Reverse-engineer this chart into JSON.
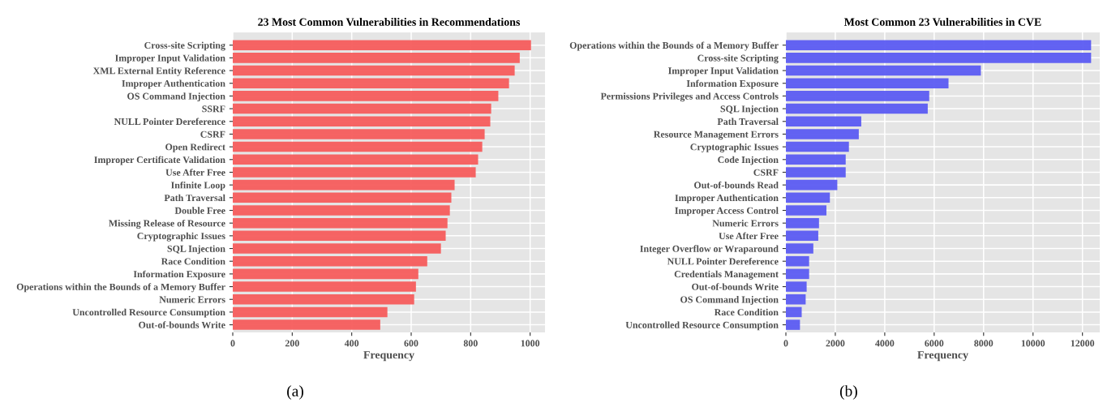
{
  "chart_data": [
    {
      "type": "bar",
      "orientation": "horizontal",
      "title": "23 Most Common Vulnerabilities in Recommendations",
      "xlabel": "Frequency",
      "annotations": [
        "(a)"
      ],
      "categories": [
        "Cross-site Scripting",
        "Improper Input Validation",
        "XML External Entity Reference",
        "Improper Authentication",
        "OS Command Injection",
        "SSRF",
        "NULL Pointer Dereference",
        "CSRF",
        "Open Redirect",
        "Improper Certificate Validation",
        "Use After Free",
        "Infinite Loop",
        "Path Traversal",
        "Double Free",
        "Missing Release of Resource",
        "Cryptographic Issues",
        "SQL Injection",
        "Race Condition",
        "Information Exposure",
        "Operations within the Bounds of a Memory Buffer",
        "Numeric Errors",
        "Uncontrolled Resource Consumption",
        "Out-of-bounds Write"
      ],
      "values": [
        1003,
        965,
        948,
        929,
        893,
        869,
        866,
        847,
        839,
        825,
        817,
        746,
        735,
        730,
        722,
        716,
        700,
        654,
        624,
        616,
        610,
        520,
        496
      ],
      "color": "#f65c5c",
      "xlim": [
        0,
        1050
      ],
      "xticks": [
        0,
        200,
        400,
        600,
        800,
        1000
      ],
      "grid": true
    },
    {
      "type": "bar",
      "orientation": "horizontal",
      "title": "Most Common 23 Vulnerabilities in CVE",
      "xlabel": "Frequency",
      "annotations": [
        "(b)"
      ],
      "categories": [
        "Operations within the Bounds of a Memory Buffer",
        "Cross-site Scripting",
        "Improper Input Validation",
        "Information Exposure",
        "Permissions Privileges and Access Controls",
        "SQL Injection",
        "Path Traversal",
        "Resource Management Errors",
        "Cryptographic Issues",
        "Code Injection",
        "CSRF",
        "Out-of-bounds Read",
        "Improper Authentication",
        "Improper Access Control",
        "Numeric Errors",
        "Use After Free",
        "Integer Overflow or Wraparound",
        "NULL Pointer Dereference",
        "Credentials Management",
        "Out-of-bounds Write",
        "OS Command Injection",
        "Race Condition",
        "Uncontrolled Resource Consumption"
      ],
      "values": [
        12350,
        12350,
        7890,
        6580,
        5800,
        5740,
        3050,
        2950,
        2550,
        2420,
        2420,
        2080,
        1780,
        1640,
        1340,
        1310,
        1110,
        940,
        940,
        840,
        800,
        640,
        570
      ],
      "color": "#5b5bf2",
      "xlim": [
        0,
        12700
      ],
      "xticks": [
        0,
        2000,
        4000,
        6000,
        8000,
        10000,
        12000
      ],
      "grid": true
    }
  ]
}
